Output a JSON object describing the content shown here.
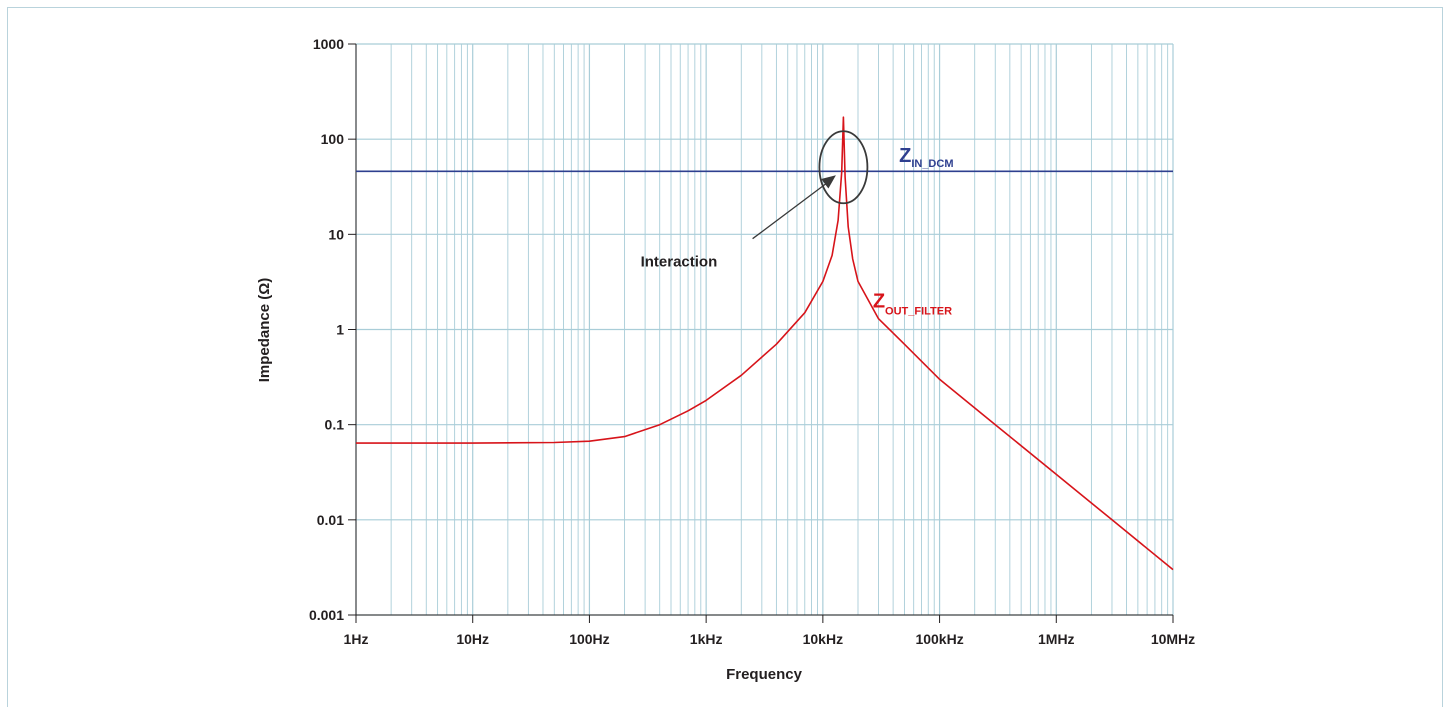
{
  "chart_data": {
    "type": "line",
    "xscale": "log",
    "yscale": "log",
    "xlim": [
      1,
      10000000
    ],
    "ylim": [
      0.001,
      1000
    ],
    "xlabel": "Frequency",
    "ylabel": "Impedance (Ω)",
    "x_ticks": [
      {
        "value": 1,
        "label": "1Hz"
      },
      {
        "value": 10,
        "label": "10Hz"
      },
      {
        "value": 100,
        "label": "100Hz"
      },
      {
        "value": 1000,
        "label": "1kHz"
      },
      {
        "value": 10000,
        "label": "10kHz"
      },
      {
        "value": 100000,
        "label": "100kHz"
      },
      {
        "value": 1000000,
        "label": "1MHz"
      },
      {
        "value": 10000000,
        "label": "10MHz"
      }
    ],
    "y_ticks": [
      {
        "value": 1000,
        "label": "1000"
      },
      {
        "value": 100,
        "label": "100"
      },
      {
        "value": 10,
        "label": "10"
      },
      {
        "value": 1,
        "label": "1"
      },
      {
        "value": 0.1,
        "label": "0.1"
      },
      {
        "value": 0.01,
        "label": "0.01"
      },
      {
        "value": 0.001,
        "label": "0.001"
      }
    ],
    "grid": true,
    "grid_color": "#a9cdd8",
    "series": [
      {
        "name_main": "Z",
        "name_sub": "IN_DCM",
        "color": "#2e3f8f",
        "x": [
          1,
          10000000
        ],
        "y": [
          46,
          46
        ]
      },
      {
        "name_main": "Z",
        "name_sub": "OUT_FILTER",
        "color": "#d7141a",
        "x": [
          1,
          10,
          50,
          100,
          200,
          400,
          700,
          1000,
          2000,
          4000,
          7000,
          10000,
          12000,
          13500,
          14500,
          15000,
          15500,
          16500,
          18000,
          20000,
          30000,
          50000,
          100000,
          300000,
          1000000,
          3000000,
          10000000
        ],
        "y": [
          0.064,
          0.064,
          0.065,
          0.067,
          0.075,
          0.1,
          0.14,
          0.18,
          0.33,
          0.7,
          1.5,
          3.2,
          6.0,
          14,
          45,
          170,
          40,
          12,
          5.5,
          3.2,
          1.3,
          0.7,
          0.3,
          0.1,
          0.03,
          0.01,
          0.003
        ]
      }
    ],
    "annotations": {
      "interaction_label": "Interaction",
      "circle_center": [
        15000,
        46
      ],
      "arrow_from": [
        2500,
        9
      ],
      "arrow_to": [
        14000,
        46
      ],
      "zin_label_pos": [
        45000,
        50
      ],
      "zout_label_pos": [
        22000,
        1.05
      ]
    }
  }
}
